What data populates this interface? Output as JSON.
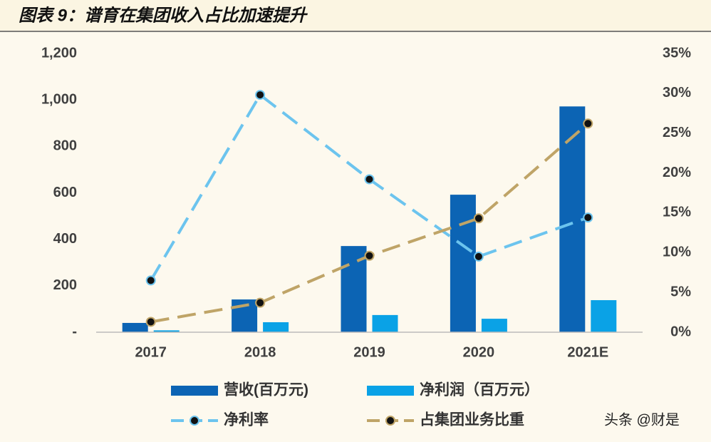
{
  "chart_data": {
    "type": "bar",
    "title": "图表 9：谱育在集团收入占比加速提升",
    "categories": [
      "2017",
      "2018",
      "2019",
      "2020",
      "2021E"
    ],
    "series": [
      {
        "name": "营收(百万元)",
        "type": "bar",
        "color": "#0c64b4",
        "values": [
          40,
          141,
          371,
          592,
          972
        ]
      },
      {
        "name": "净利润（百万元）",
        "type": "bar",
        "color": "#0aa2e6",
        "values": [
          8,
          43,
          74,
          58,
          138
        ]
      },
      {
        "name": "净利率",
        "type": "line",
        "axis": "y2",
        "color": "#6cc4ee",
        "values": [
          6.5,
          29.8,
          19.2,
          9.5,
          14.4
        ]
      },
      {
        "name": "占集团业务比重",
        "type": "line",
        "axis": "y2",
        "color": "#bfa467",
        "values": [
          1.3,
          3.7,
          9.6,
          14.3,
          26.2
        ]
      }
    ],
    "ylim": [
      0,
      1200
    ],
    "yticks": [
      {
        "value": 0,
        "label": "-"
      },
      200,
      400,
      600,
      800,
      {
        "value": 1000,
        "label": "1,000"
      },
      {
        "value": 1200,
        "label": "1,200"
      }
    ],
    "y2lim": [
      0,
      35
    ],
    "y2ticks": [
      {
        "value": 0,
        "label": "0%"
      },
      {
        "value": 5,
        "label": "5%"
      },
      {
        "value": 10,
        "label": "10%"
      },
      {
        "value": 15,
        "label": "15%"
      },
      {
        "value": 20,
        "label": "20%"
      },
      {
        "value": 25,
        "label": "25%"
      },
      {
        "value": 30,
        "label": "30%"
      },
      {
        "value": 35,
        "label": "35%"
      }
    ]
  },
  "watermark": "头条 @财是"
}
